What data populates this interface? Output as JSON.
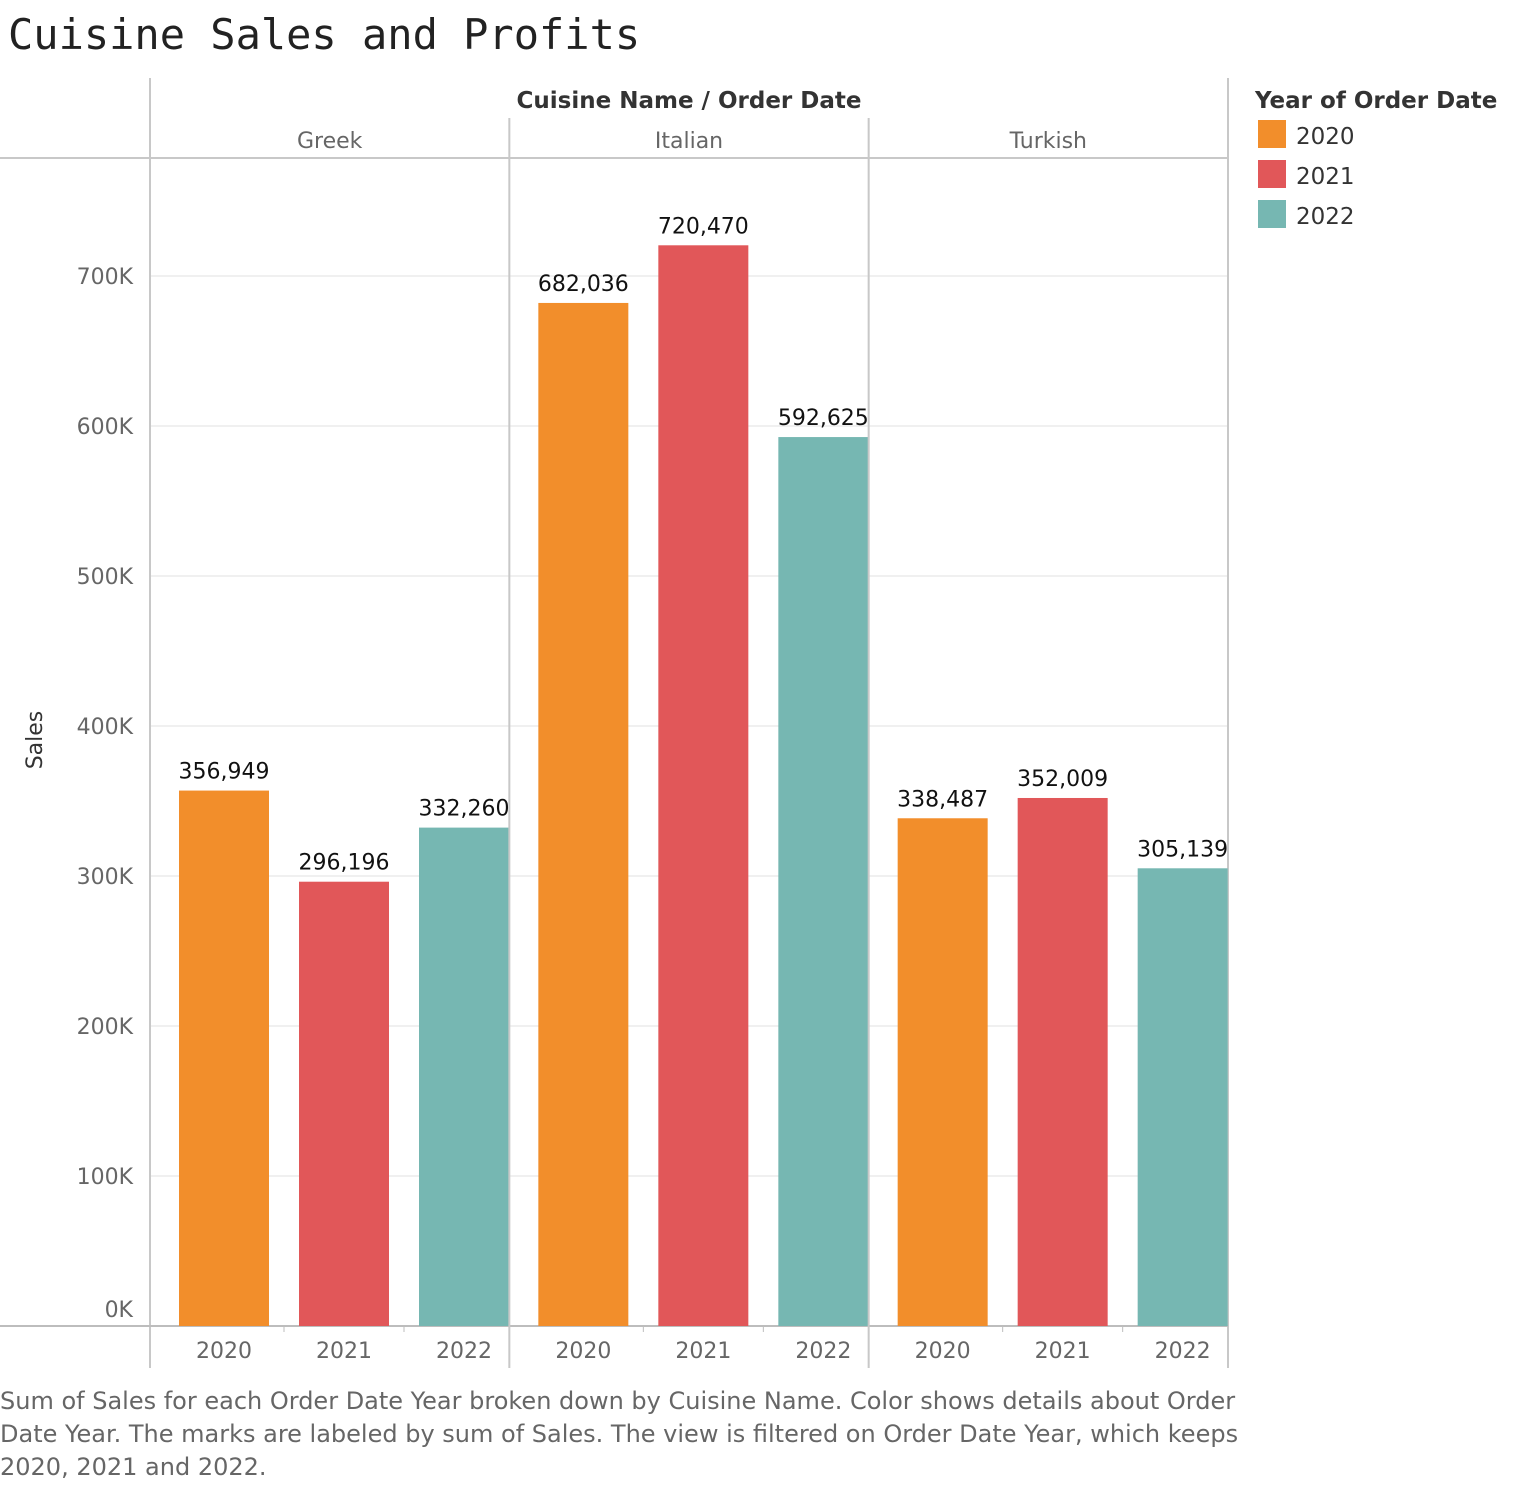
{
  "title": "Cuisine Sales and Profits",
  "caption": "Sum of Sales for each Order Date Year broken down by Cuisine Name.  Color shows details about Order Date Year.  The marks are labeled by sum of Sales. The view is filtered on Order Date Year, which keeps 2020, 2021 and 2022.",
  "chart_data": {
    "type": "bar",
    "column_header": "Cuisine Name  /  Order Date",
    "ylabel": "Sales",
    "ylim": [
      0,
      780000
    ],
    "yticks": [
      {
        "value": 0,
        "label": "0K"
      },
      {
        "value": 100000,
        "label": "100K"
      },
      {
        "value": 200000,
        "label": "200K"
      },
      {
        "value": 300000,
        "label": "300K"
      },
      {
        "value": 400000,
        "label": "400K"
      },
      {
        "value": 500000,
        "label": "500K"
      },
      {
        "value": 600000,
        "label": "600K"
      },
      {
        "value": 700000,
        "label": "700K"
      }
    ],
    "grid": true,
    "legend": {
      "title": "Year of Order Date",
      "position": "right",
      "items": [
        {
          "label": "2020",
          "color": "#f28e2b"
        },
        {
          "label": "2021",
          "color": "#e15759"
        },
        {
          "label": "2022",
          "color": "#76b7b2"
        }
      ]
    },
    "groups": [
      {
        "name": "Greek",
        "bars": [
          {
            "year": "2020",
            "value": 356949,
            "label": "356,949"
          },
          {
            "year": "2021",
            "value": 296196,
            "label": "296,196"
          },
          {
            "year": "2022",
            "value": 332260,
            "label": "332,260"
          }
        ]
      },
      {
        "name": "Italian",
        "bars": [
          {
            "year": "2020",
            "value": 682036,
            "label": "682,036"
          },
          {
            "year": "2021",
            "value": 720470,
            "label": "720,470"
          },
          {
            "year": "2022",
            "value": 592625,
            "label": "592,625"
          }
        ]
      },
      {
        "name": "Turkish",
        "bars": [
          {
            "year": "2020",
            "value": 338487,
            "label": "338,487"
          },
          {
            "year": "2021",
            "value": 352009,
            "label": "352,009"
          },
          {
            "year": "2022",
            "value": 305139,
            "label": "305,139"
          }
        ]
      }
    ]
  }
}
